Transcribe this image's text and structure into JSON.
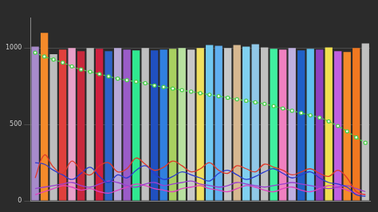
{
  "chart_data": {
    "type": "bar",
    "categories": [
      null,
      null,
      null,
      null,
      null,
      null,
      null,
      null,
      null,
      null,
      null,
      null,
      null,
      null,
      null,
      null,
      null,
      null,
      null,
      null,
      null,
      null,
      null,
      null,
      null,
      null,
      null,
      null,
      null,
      null,
      null,
      null,
      null,
      null,
      null,
      null,
      null
    ],
    "ylim": [
      0,
      1200
    ],
    "yticks": [
      0,
      500,
      1000
    ],
    "grid": true,
    "tick_labels": "y",
    "series": [
      {
        "type": "bar",
        "colors": [
          "#a78bcb",
          "#f58a2a",
          "#bdbdbd",
          "#e0403c",
          "#e8a0c8",
          "#c8283c",
          "#bdbdbd",
          "#d02040",
          "#2e64c8",
          "#b8a8d8",
          "#9a5cc8",
          "#30e890",
          "#c0c0c0",
          "#2050c0",
          "#3080e0",
          "#a8d060",
          "#b8e0a0",
          "#c8c8c8",
          "#f0e060",
          "#70c8f0",
          "#60b0f0",
          "#c8c8c8",
          "#d8b890",
          "#80d0f0",
          "#90c8e8",
          "#c0c0c0",
          "#40f0a0",
          "#f080c0",
          "#c0b0e0",
          "#2060c8",
          "#60c0f0",
          "#9040c0",
          "#f0e050",
          "#c060e0",
          "#f58a2a",
          "#f07820",
          "#c0c0c0"
        ],
        "values": [
          1010,
          1100,
          960,
          990,
          1000,
          980,
          1000,
          995,
          980,
          1000,
          990,
          985,
          1000,
          985,
          990,
          995,
          1000,
          990,
          1000,
          1020,
          1015,
          1000,
          1020,
          1010,
          1025,
          1005,
          995,
          990,
          1000,
          985,
          995,
          990,
          1005,
          980,
          975,
          1000,
          1030
        ]
      },
      {
        "type": "line",
        "color": "#4cd04c",
        "marker": "circle",
        "line_style": "dashed",
        "values": [
          970,
          945,
          925,
          905,
          880,
          860,
          845,
          830,
          815,
          800,
          790,
          780,
          770,
          755,
          745,
          735,
          725,
          715,
          705,
          695,
          685,
          675,
          665,
          655,
          645,
          635,
          620,
          605,
          590,
          575,
          560,
          545,
          520,
          490,
          455,
          415,
          380
        ]
      },
      {
        "type": "line",
        "color": "#e03a2a",
        "marker": "none",
        "line_style": "solid",
        "values": [
          150,
          300,
          220,
          180,
          260,
          200,
          170,
          230,
          250,
          190,
          210,
          280,
          240,
          200,
          220,
          260,
          230,
          190,
          210,
          250,
          200,
          180,
          230,
          210,
          190,
          240,
          220,
          200,
          170,
          190,
          210,
          180,
          160,
          200,
          150,
          60,
          40
        ]
      },
      {
        "type": "line",
        "color": "#2a3ad0",
        "marker": "none",
        "line_style": "solid",
        "values": [
          250,
          240,
          200,
          170,
          140,
          180,
          220,
          160,
          120,
          170,
          150,
          200,
          230,
          180,
          140,
          160,
          190,
          170,
          150,
          130,
          180,
          200,
          170,
          140,
          160,
          190,
          210,
          180,
          150,
          170,
          190,
          150,
          120,
          110,
          90,
          40,
          30
        ]
      },
      {
        "type": "line",
        "color": "#9a40d0",
        "marker": "none",
        "line_style": "solid",
        "values": [
          80,
          90,
          100,
          110,
          120,
          100,
          90,
          110,
          130,
          120,
          100,
          90,
          110,
          120,
          100,
          110,
          120,
          130,
          110,
          100,
          90,
          100,
          120,
          110,
          100,
          90,
          100,
          110,
          120,
          110,
          100,
          90,
          80,
          90,
          100,
          80,
          60
        ]
      },
      {
        "type": "line",
        "color": "#e040c0",
        "marker": "none",
        "line_style": "solid",
        "values": [
          40,
          60,
          80,
          100,
          90,
          70,
          80,
          60,
          50,
          70,
          90,
          110,
          100,
          80,
          70,
          60,
          80,
          90,
          100,
          80,
          70,
          60,
          80,
          100,
          90,
          70,
          60,
          80,
          90,
          70,
          60,
          80,
          100,
          90,
          70,
          50,
          40
        ]
      }
    ]
  }
}
